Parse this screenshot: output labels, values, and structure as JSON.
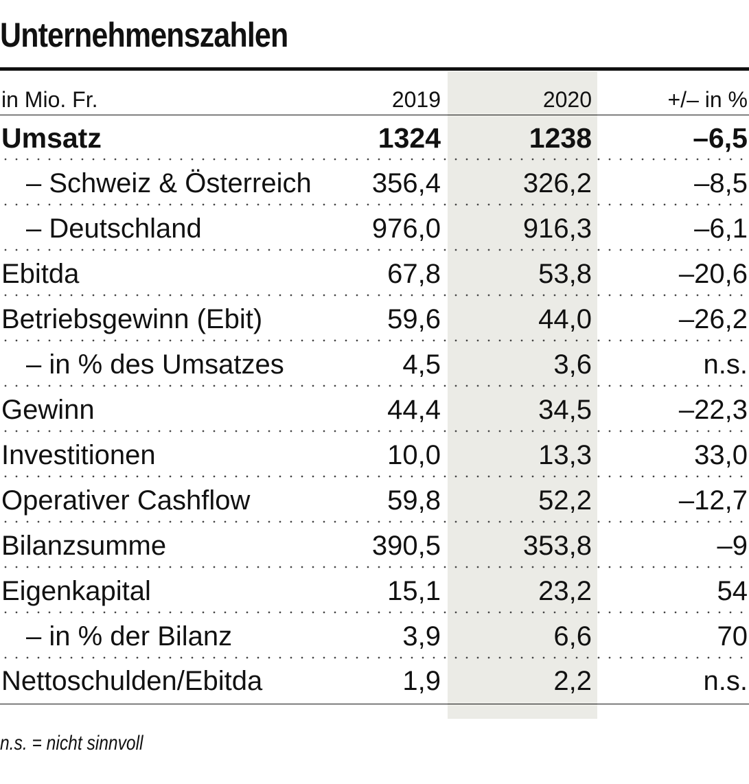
{
  "title": "Unternehmenszahlen",
  "chart_data": {
    "type": "table",
    "title": "Unternehmenszahlen",
    "header": {
      "unit": "in Mio. Fr.",
      "col_2019": "2019",
      "col_2020": "2020",
      "col_change": "+/– in %"
    },
    "rows": [
      {
        "label": "Umsatz",
        "v2019": "1324",
        "v2020": "1238",
        "change": "–6,5"
      },
      {
        "label": "– Schweiz & Österreich",
        "v2019": "356,4",
        "v2020": "326,2",
        "change": "–8,5"
      },
      {
        "label": "– Deutschland",
        "v2019": "976,0",
        "v2020": "916,3",
        "change": "–6,1"
      },
      {
        "label": "Ebitda",
        "v2019": "67,8",
        "v2020": "53,8",
        "change": "–20,6"
      },
      {
        "label": "Betriebsgewinn (Ebit)",
        "v2019": "59,6",
        "v2020": "44,0",
        "change": "–26,2"
      },
      {
        "label": "– in % des Umsatzes",
        "v2019": "4,5",
        "v2020": "3,6",
        "change": "n.s."
      },
      {
        "label": "Gewinn",
        "v2019": "44,4",
        "v2020": "34,5",
        "change": "–22,3"
      },
      {
        "label": "Investitionen",
        "v2019": "10,0",
        "v2020": "13,3",
        "change": "33,0"
      },
      {
        "label": "Operativer Cashflow",
        "v2019": "59,8",
        "v2020": "52,2",
        "change": "–12,7"
      },
      {
        "label": "Bilanzsumme",
        "v2019": "390,5",
        "v2020": "353,8",
        "change": "–9"
      },
      {
        "label": "Eigenkapital",
        "v2019": "15,1",
        "v2020": "23,2",
        "change": "54"
      },
      {
        "label": "– in % der Bilanz",
        "v2019": "3,9",
        "v2020": "6,6",
        "change": "70"
      },
      {
        "label": "Nettoschulden/Ebitda",
        "v2019": "1,9",
        "v2020": "2,2",
        "change": "n.s."
      }
    ]
  },
  "footnote": "n.s. = nicht sinnvoll",
  "colors": {
    "text": "#111111",
    "highlight_column": "#ebebe6",
    "rule": "#111111"
  }
}
